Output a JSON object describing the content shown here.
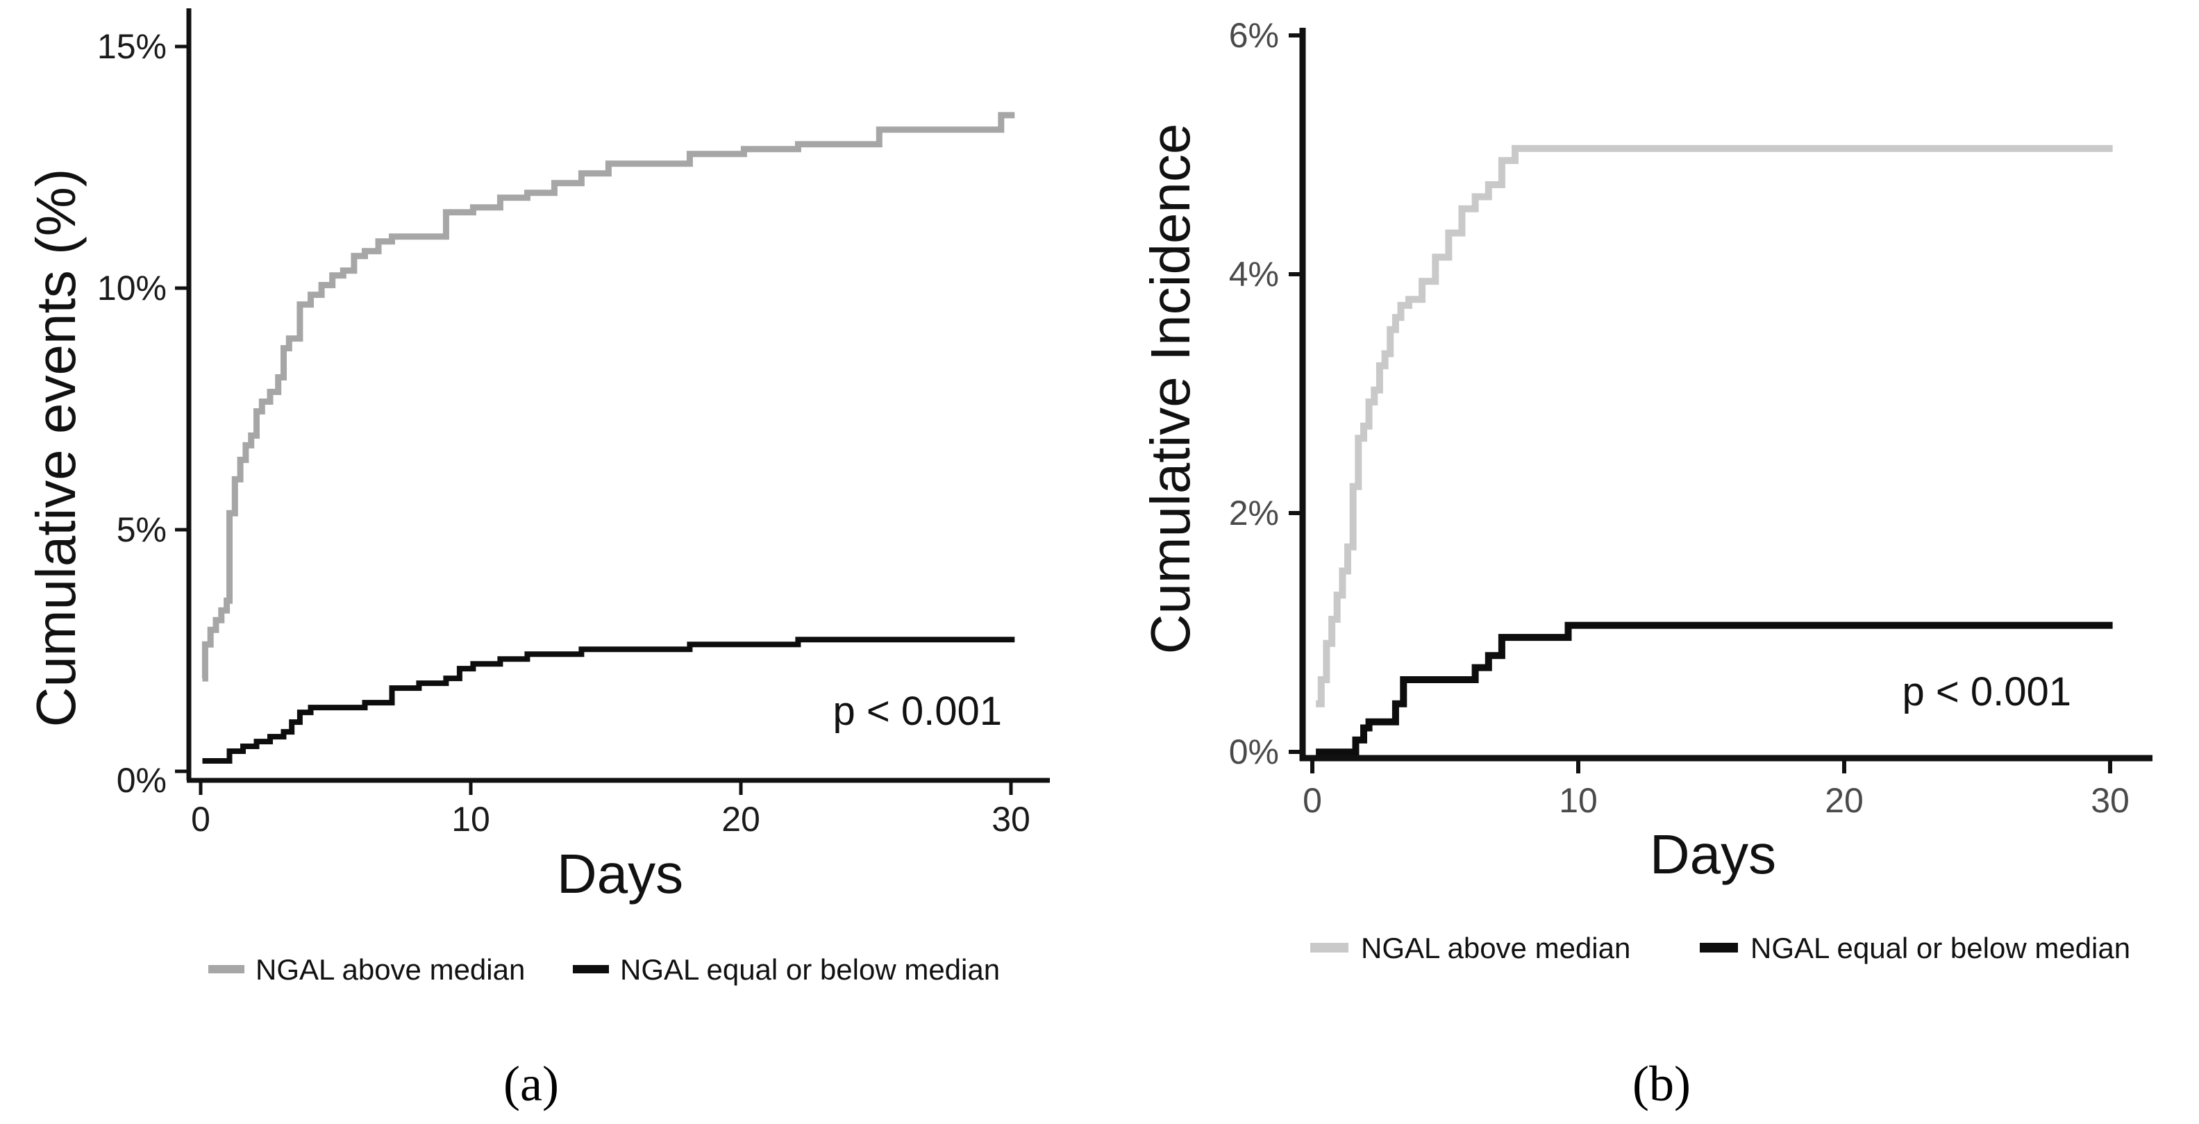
{
  "chart_data": [
    {
      "type": "line",
      "panel_label": "(a)",
      "xlabel": "Days",
      "ylabel": "Cumulative events (%)",
      "xlim": [
        -0.5,
        31.3
      ],
      "ylim": [
        -0.3,
        15.6
      ],
      "x_ticks": [
        0,
        10,
        20,
        30
      ],
      "x_tick_labels": [
        "0",
        "10",
        "20",
        "30"
      ],
      "y_ticks": [
        0,
        5,
        10,
        15
      ],
      "y_tick_labels": [
        "0%",
        "5%",
        "10%",
        "15%"
      ],
      "annotation": "p < 0.001",
      "series": [
        {
          "name": "NGAL above median",
          "color": "#a6a6a6",
          "x": [
            0,
            0.1,
            0.3,
            0.5,
            0.7,
            0.9,
            1.0,
            1.2,
            1.4,
            1.6,
            1.8,
            2.0,
            2.2,
            2.5,
            2.8,
            3.0,
            3.2,
            3.6,
            4.0,
            4.4,
            4.8,
            5.2,
            5.6,
            6.0,
            6.5,
            7.0,
            7.5,
            8.0,
            9.0,
            10.0,
            11.0,
            12.0,
            13.0,
            14.0,
            15.0,
            17.0,
            18.0,
            20.0,
            22.0,
            24.0,
            25.0,
            27.0,
            28.0,
            29.5,
            30.0
          ],
          "y": [
            1.8,
            2.5,
            2.8,
            3.0,
            3.2,
            3.4,
            5.2,
            5.9,
            6.3,
            6.6,
            6.8,
            7.3,
            7.5,
            7.7,
            8.0,
            8.6,
            8.8,
            9.5,
            9.7,
            9.9,
            10.1,
            10.2,
            10.5,
            10.6,
            10.8,
            10.9,
            10.9,
            10.9,
            11.4,
            11.5,
            11.7,
            11.8,
            12.0,
            12.2,
            12.4,
            12.4,
            12.6,
            12.7,
            12.8,
            12.8,
            13.1,
            13.1,
            13.1,
            13.4,
            13.4
          ]
        },
        {
          "name": "NGAL equal or below median",
          "color": "#0d0d0d",
          "x": [
            0,
            1.0,
            1.5,
            2.0,
            2.5,
            3.0,
            3.3,
            3.6,
            4.0,
            5.0,
            6.0,
            7.0,
            8.0,
            9.0,
            9.5,
            10.0,
            11.0,
            12.0,
            13.0,
            14.0,
            16.0,
            18.0,
            20.0,
            22.0,
            24.0,
            26.0,
            28.0,
            30.0
          ],
          "y": [
            0.1,
            0.3,
            0.4,
            0.5,
            0.6,
            0.7,
            0.9,
            1.1,
            1.2,
            1.2,
            1.3,
            1.6,
            1.7,
            1.8,
            2.0,
            2.1,
            2.2,
            2.3,
            2.3,
            2.4,
            2.4,
            2.5,
            2.5,
            2.6,
            2.6,
            2.6,
            2.6,
            2.6
          ]
        }
      ]
    },
    {
      "type": "line",
      "panel_label": "(b)",
      "xlabel": "Days",
      "ylabel": "Cumulative Incidence",
      "xlim": [
        -0.5,
        31.5
      ],
      "ylim": [
        -0.05,
        6.0
      ],
      "x_ticks": [
        0,
        10,
        20,
        30
      ],
      "x_tick_labels": [
        "0",
        "10",
        "20",
        "30"
      ],
      "y_ticks": [
        0,
        2,
        4,
        6
      ],
      "y_tick_labels": [
        "0%",
        "2%",
        "4%",
        "6%"
      ],
      "annotation": "p < 0.001",
      "series": [
        {
          "name": "NGAL above median",
          "color": "#c9c9c9",
          "x": [
            0,
            0.2,
            0.4,
            0.6,
            0.8,
            1.0,
            1.2,
            1.4,
            1.6,
            1.8,
            2.0,
            2.2,
            2.4,
            2.6,
            2.8,
            3.0,
            3.2,
            3.5,
            4.0,
            4.5,
            5.0,
            5.5,
            6.0,
            6.5,
            7.0,
            7.5,
            8.0,
            10.0,
            15.0,
            20.0,
            25.0,
            30.0
          ],
          "y": [
            0.4,
            0.6,
            0.9,
            1.1,
            1.3,
            1.5,
            1.7,
            2.2,
            2.6,
            2.7,
            2.9,
            3.0,
            3.2,
            3.3,
            3.5,
            3.6,
            3.7,
            3.75,
            3.9,
            4.1,
            4.3,
            4.5,
            4.6,
            4.7,
            4.9,
            5.0,
            5.0,
            5.0,
            5.0,
            5.0,
            5.0,
            5.0
          ]
        },
        {
          "name": "NGAL equal or below median",
          "color": "#0d0d0d",
          "x": [
            0,
            1.5,
            1.8,
            2.0,
            3.0,
            3.3,
            4.0,
            5.0,
            6.0,
            6.5,
            7.0,
            8.0,
            9.0,
            9.5,
            10.0,
            15.0,
            20.0,
            25.0,
            30.0
          ],
          "y": [
            0.0,
            0.1,
            0.2,
            0.25,
            0.4,
            0.6,
            0.6,
            0.6,
            0.7,
            0.8,
            0.95,
            0.95,
            0.95,
            1.05,
            1.05,
            1.05,
            1.05,
            1.05,
            1.05
          ]
        }
      ]
    }
  ]
}
